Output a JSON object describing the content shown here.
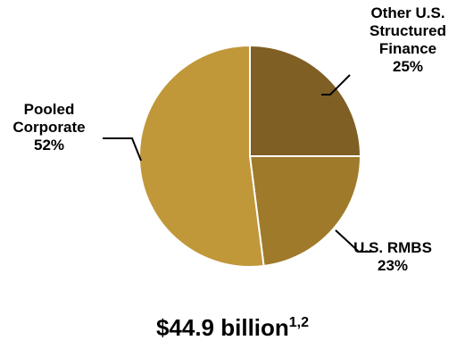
{
  "chart_data": {
    "type": "pie",
    "slices": [
      {
        "label": [
          "Other U.S.",
          "Structured",
          "Finance"
        ],
        "pct_label": "25%",
        "value": 25,
        "color": "#7f5f24"
      },
      {
        "label": [
          "U.S. RMBS"
        ],
        "pct_label": "23%",
        "value": 23,
        "color": "#9f7a2a"
      },
      {
        "label": [
          "Pooled",
          "Corporate"
        ],
        "pct_label": "52%",
        "value": 52,
        "color": "#c09739"
      }
    ],
    "start_angle_deg": 0,
    "direction": "clockwise",
    "total_label": "$44.9 billion",
    "total_superscript": "1,2"
  }
}
